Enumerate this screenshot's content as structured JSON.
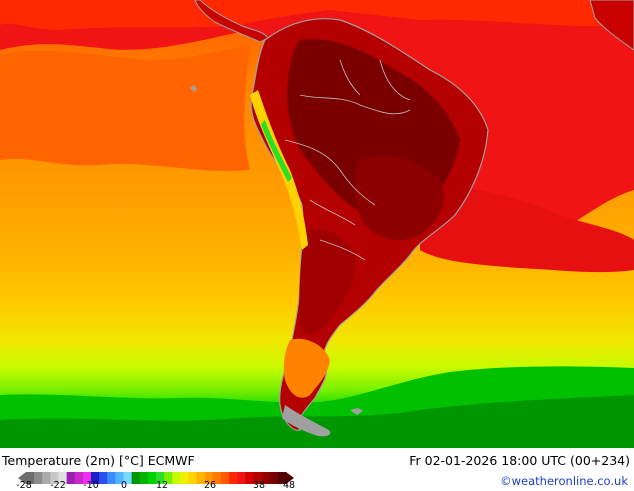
{
  "map": {
    "title": "Temperature (2m) [°C] ECMWF",
    "valid_time": "Fr 02-01-2026 18:00 UTC (00+234)",
    "credit": "©weatheronline.co.uk",
    "region": "South America",
    "legend": {
      "tick_labels": [
        "-28",
        "-22",
        "-10",
        "0",
        "12",
        "26",
        "38",
        "48"
      ],
      "colors": [
        "#6e6e6e",
        "#8c8c8c",
        "#aaaaaa",
        "#c8c8c8",
        "#e0e0e0",
        "#9a1fb0",
        "#c828c8",
        "#f02cf0",
        "#1e1ec8",
        "#2850f0",
        "#3c8cff",
        "#50b4ff",
        "#78d8ff",
        "#009600",
        "#00b400",
        "#00d200",
        "#28e028",
        "#78f000",
        "#c8fa00",
        "#f0f000",
        "#ffd200",
        "#ffb400",
        "#ff9600",
        "#ff7800",
        "#ff5a00",
        "#ff2800",
        "#f01414",
        "#d20000",
        "#b40000",
        "#960000",
        "#780000",
        "#500000"
      ]
    },
    "palette": {
      "deep_red": "#780000",
      "red": "#d20000",
      "red_orange": "#ff2800",
      "orange": "#ff7800",
      "light_orange": "#ff9600",
      "amber": "#ffb400",
      "yellow": "#ffd200",
      "lime": "#c8fa00",
      "green": "#00b400",
      "land_gray": "#a0a0a0"
    }
  }
}
